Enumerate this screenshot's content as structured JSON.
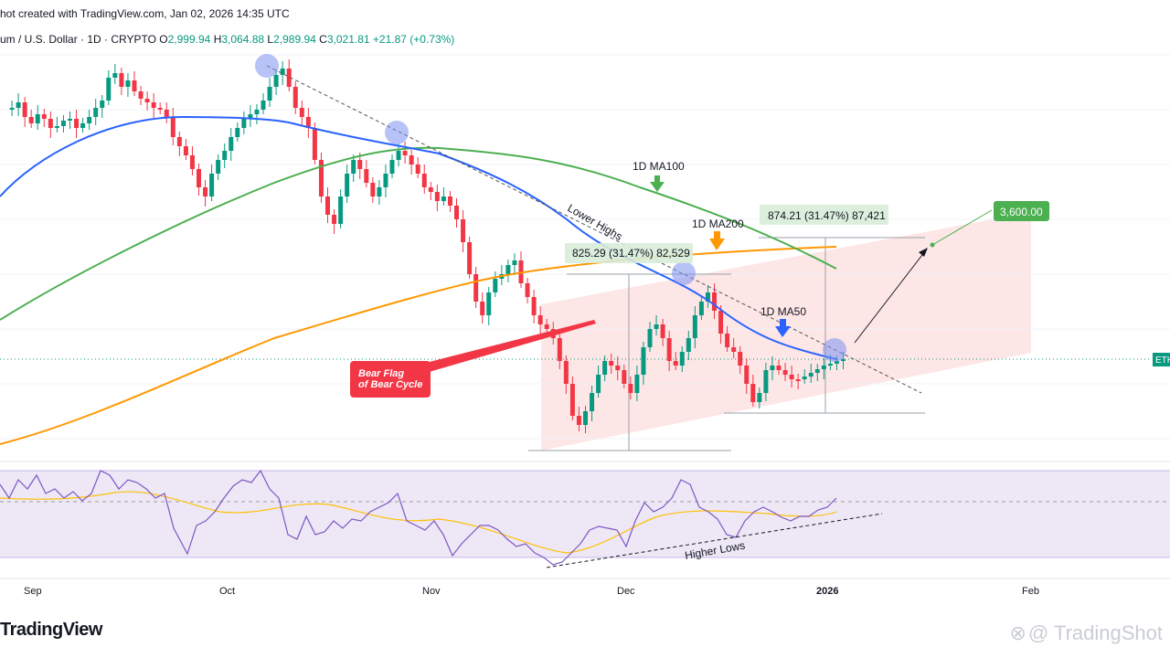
{
  "header": {
    "snapshot_text": "hot created with TradingView.com, Jan 02, 2026 14:35 UTC",
    "symbol_text": "um / U.S. Dollar · 1D · CRYPTO",
    "open_label": "O",
    "open": "2,999.94",
    "high_label": "H",
    "high": "3,064.88",
    "low_label": "L",
    "low": "2,989.94",
    "close_label": "C",
    "close": "3,021.81",
    "change": "+21.87 (+0.73%)"
  },
  "colors": {
    "up": "#089981",
    "down": "#f23645",
    "ma50": "#2962ff",
    "ma100": "#4caf50",
    "ma200": "#ff9800",
    "channel": "#fce4e4",
    "rsi": "#7e57c2",
    "rsi_bg": "#ede7f6",
    "label_green": "#4caf50",
    "label_red": "#f23645"
  },
  "chart_data": {
    "type": "candlestick",
    "x_axis_labels": [
      "Sep",
      "Oct",
      "Nov",
      "Dec",
      "2026",
      "Feb"
    ],
    "annotations": {
      "ma100": "1D MA100",
      "ma200": "1D MA200",
      "ma50": "1D MA50",
      "lower_highs": "Lower Highs",
      "higher_lows": "Higher Lows",
      "bear_flag_line1": "Bear Flag",
      "bear_flag_line2": "of Bear Cycle",
      "measure1": "825.29 (31.47%) 82,529",
      "measure2": "874.21 (31.47%) 87,421",
      "target": "3,600.00",
      "price_tag": "ETH"
    }
  },
  "footer": {
    "brand_left": "TradingView",
    "brand_right": "@ TradingShot"
  }
}
